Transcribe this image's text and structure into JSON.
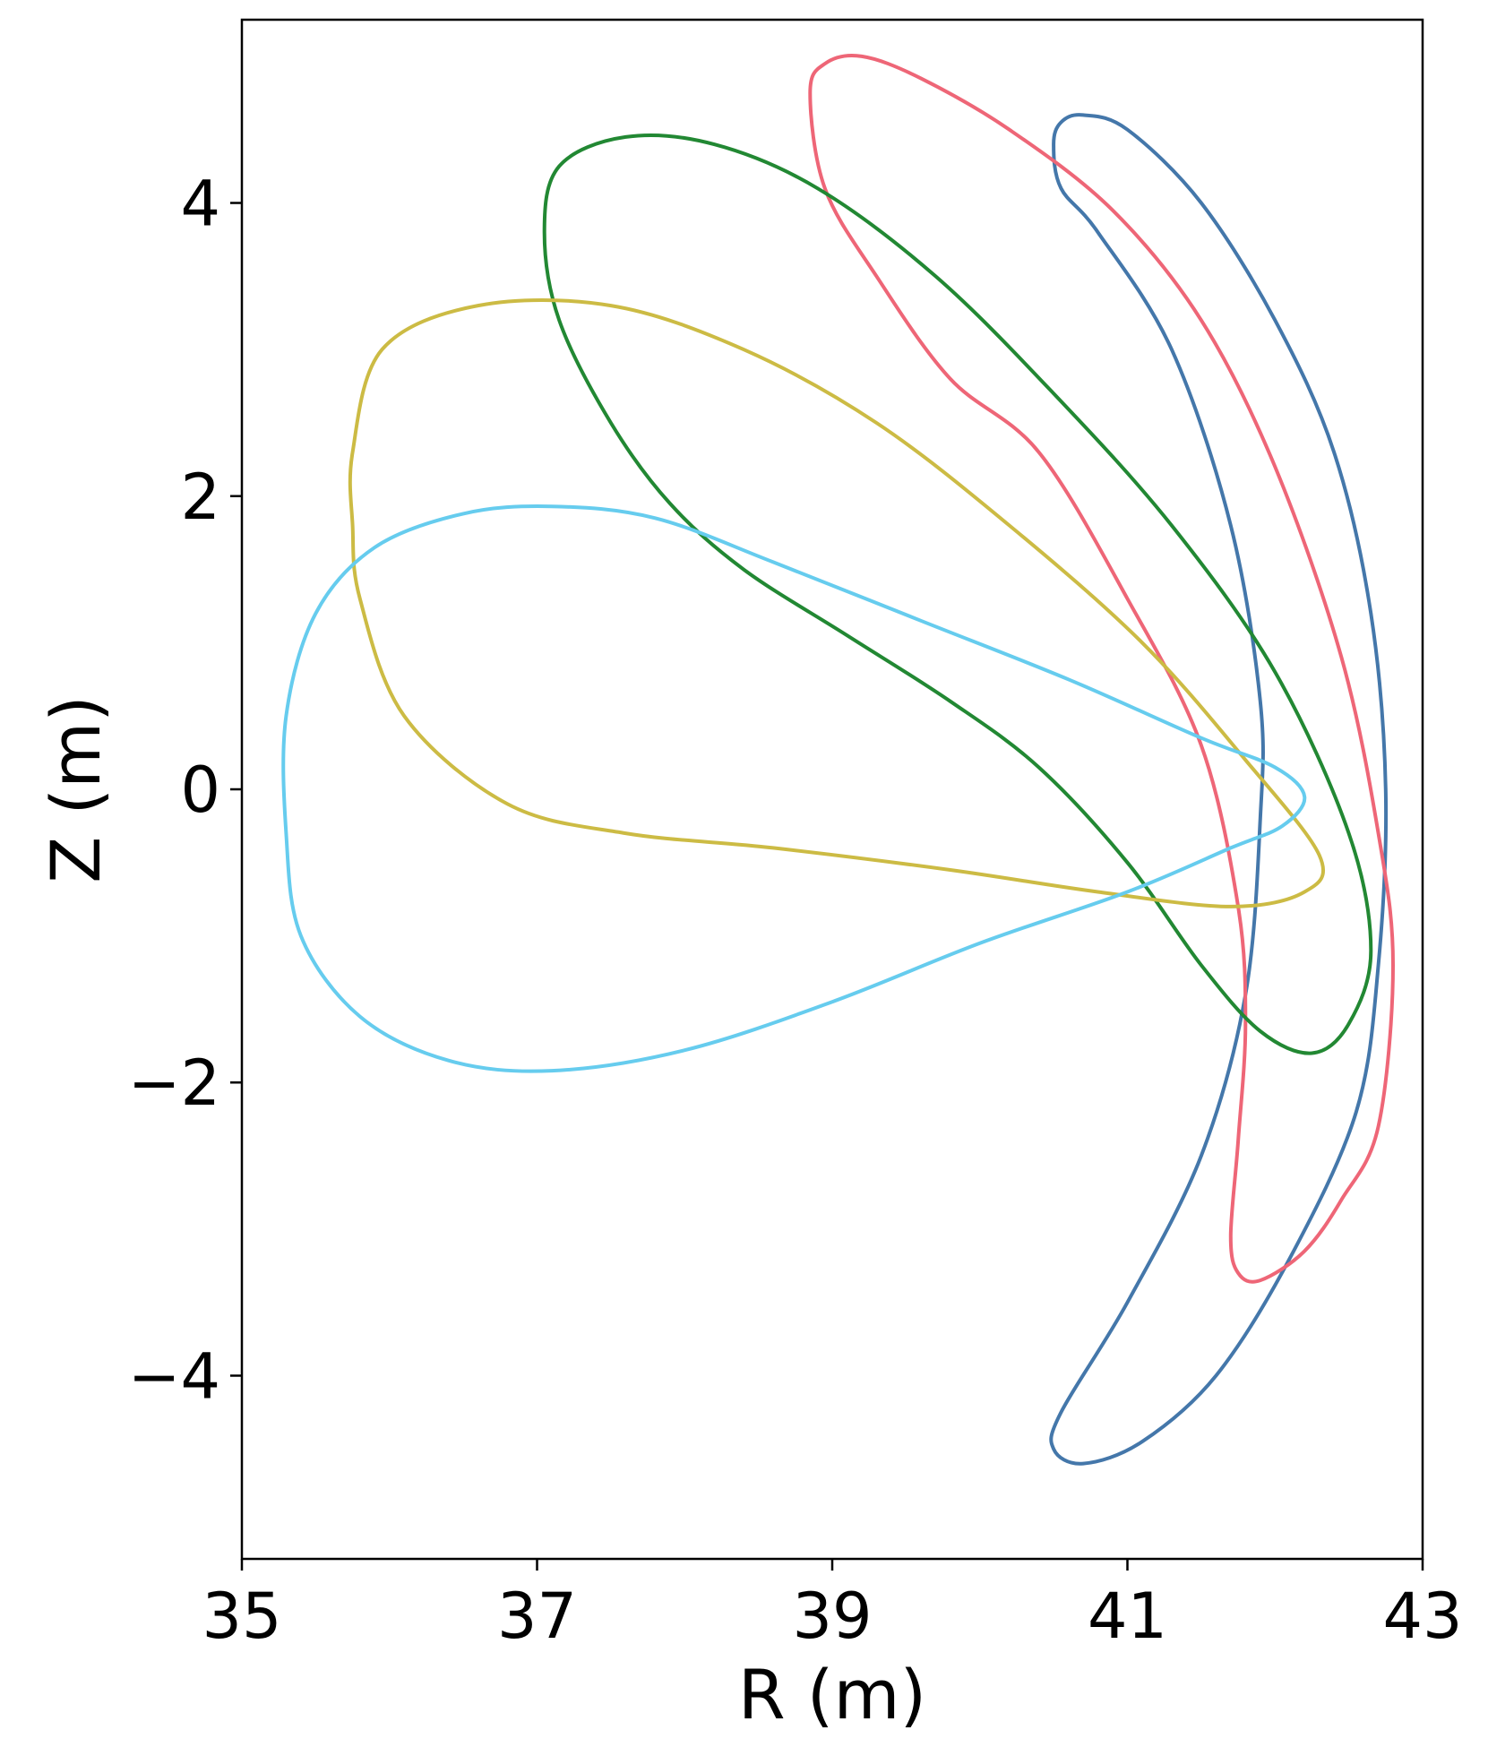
{
  "chart_data": {
    "type": "line",
    "title": "",
    "xlabel": "R (m)",
    "ylabel": "Z (m)",
    "xlim": [
      35,
      43
    ],
    "ylim": [
      -5.25,
      5.25
    ],
    "xticks": [
      35,
      37,
      39,
      41,
      43
    ],
    "xtick_labels": [
      "35",
      "37",
      "39",
      "41",
      "43"
    ],
    "yticks": [
      -4,
      -2,
      0,
      2,
      4
    ],
    "ytick_labels": [
      "−4",
      "−2",
      "0",
      "2",
      "4"
    ],
    "grid": false,
    "legend": "none",
    "series": [
      {
        "color": "#4477AA",
        "closed": true,
        "points": [
          [
            40.5,
            4.4
          ],
          [
            40.55,
            4.55
          ],
          [
            40.7,
            4.6
          ],
          [
            41.0,
            4.5
          ],
          [
            41.5,
            4.0
          ],
          [
            42.0,
            3.2
          ],
          [
            42.4,
            2.3
          ],
          [
            42.65,
            1.2
          ],
          [
            42.75,
            0.0
          ],
          [
            42.7,
            -1.2
          ],
          [
            42.55,
            -2.2
          ],
          [
            42.1,
            -3.2
          ],
          [
            41.6,
            -4.0
          ],
          [
            41.1,
            -4.45
          ],
          [
            40.7,
            -4.6
          ],
          [
            40.5,
            -4.5
          ],
          [
            40.55,
            -4.25
          ],
          [
            41.0,
            -3.5
          ],
          [
            41.5,
            -2.5
          ],
          [
            41.8,
            -1.4
          ],
          [
            41.9,
            -0.2
          ],
          [
            41.9,
            0.6
          ],
          [
            41.7,
            1.8
          ],
          [
            41.3,
            3.0
          ],
          [
            40.8,
            3.8
          ],
          [
            40.55,
            4.1
          ]
        ]
      },
      {
        "color": "#EE6677",
        "closed": true,
        "points": [
          [
            38.85,
            4.75
          ],
          [
            38.95,
            4.95
          ],
          [
            39.2,
            5.0
          ],
          [
            39.6,
            4.85
          ],
          [
            40.2,
            4.5
          ],
          [
            40.9,
            3.95
          ],
          [
            41.5,
            3.2
          ],
          [
            42.0,
            2.2
          ],
          [
            42.45,
            0.9
          ],
          [
            42.7,
            -0.3
          ],
          [
            42.8,
            -1.2
          ],
          [
            42.7,
            -2.3
          ],
          [
            42.45,
            -2.8
          ],
          [
            42.2,
            -3.15
          ],
          [
            41.9,
            -3.35
          ],
          [
            41.75,
            -3.3
          ],
          [
            41.7,
            -3.05
          ],
          [
            41.75,
            -2.4
          ],
          [
            41.8,
            -1.6
          ],
          [
            41.75,
            -0.8
          ],
          [
            41.5,
            0.3
          ],
          [
            41.0,
            1.3
          ],
          [
            40.4,
            2.3
          ],
          [
            39.8,
            2.8
          ],
          [
            39.3,
            3.5
          ],
          [
            38.95,
            4.1
          ]
        ]
      },
      {
        "color": "#228833",
        "closed": true,
        "points": [
          [
            37.05,
            3.8
          ],
          [
            37.15,
            4.25
          ],
          [
            37.6,
            4.45
          ],
          [
            38.2,
            4.4
          ],
          [
            38.9,
            4.1
          ],
          [
            39.7,
            3.5
          ],
          [
            40.5,
            2.7
          ],
          [
            41.3,
            1.8
          ],
          [
            42.0,
            0.8
          ],
          [
            42.5,
            -0.3
          ],
          [
            42.65,
            -1.1
          ],
          [
            42.5,
            -1.6
          ],
          [
            42.25,
            -1.8
          ],
          [
            41.9,
            -1.65
          ],
          [
            41.5,
            -1.2
          ],
          [
            41.0,
            -0.5
          ],
          [
            40.4,
            0.15
          ],
          [
            39.8,
            0.6
          ],
          [
            39.1,
            1.05
          ],
          [
            38.4,
            1.5
          ],
          [
            37.9,
            1.95
          ],
          [
            37.5,
            2.5
          ],
          [
            37.15,
            3.2
          ]
        ]
      },
      {
        "color": "#CCBB44",
        "closed": true,
        "points": [
          [
            35.75,
            2.3
          ],
          [
            35.95,
            3.0
          ],
          [
            36.6,
            3.3
          ],
          [
            37.5,
            3.3
          ],
          [
            38.4,
            3.0
          ],
          [
            39.3,
            2.5
          ],
          [
            40.2,
            1.8
          ],
          [
            41.1,
            1.0
          ],
          [
            41.8,
            0.2
          ],
          [
            42.3,
            -0.45
          ],
          [
            42.2,
            -0.7
          ],
          [
            41.7,
            -0.8
          ],
          [
            40.8,
            -0.7
          ],
          [
            39.8,
            -0.55
          ],
          [
            38.6,
            -0.4
          ],
          [
            37.6,
            -0.3
          ],
          [
            36.8,
            -0.1
          ],
          [
            36.1,
            0.5
          ],
          [
            35.8,
            1.3
          ],
          [
            35.75,
            1.8
          ]
        ]
      },
      {
        "color": "#66CCEE",
        "closed": true,
        "points": [
          [
            35.3,
            0.5
          ],
          [
            35.5,
            1.2
          ],
          [
            35.9,
            1.65
          ],
          [
            36.5,
            1.88
          ],
          [
            37.1,
            1.93
          ],
          [
            37.8,
            1.85
          ],
          [
            38.6,
            1.55
          ],
          [
            39.6,
            1.15
          ],
          [
            40.6,
            0.75
          ],
          [
            41.5,
            0.35
          ],
          [
            42.0,
            0.15
          ],
          [
            42.2,
            -0.05
          ],
          [
            42.05,
            -0.25
          ],
          [
            41.7,
            -0.4
          ],
          [
            41.0,
            -0.7
          ],
          [
            40.0,
            -1.05
          ],
          [
            39.0,
            -1.45
          ],
          [
            38.0,
            -1.78
          ],
          [
            37.1,
            -1.92
          ],
          [
            36.4,
            -1.85
          ],
          [
            35.8,
            -1.55
          ],
          [
            35.4,
            -1.0
          ],
          [
            35.3,
            -0.3
          ]
        ]
      }
    ]
  }
}
